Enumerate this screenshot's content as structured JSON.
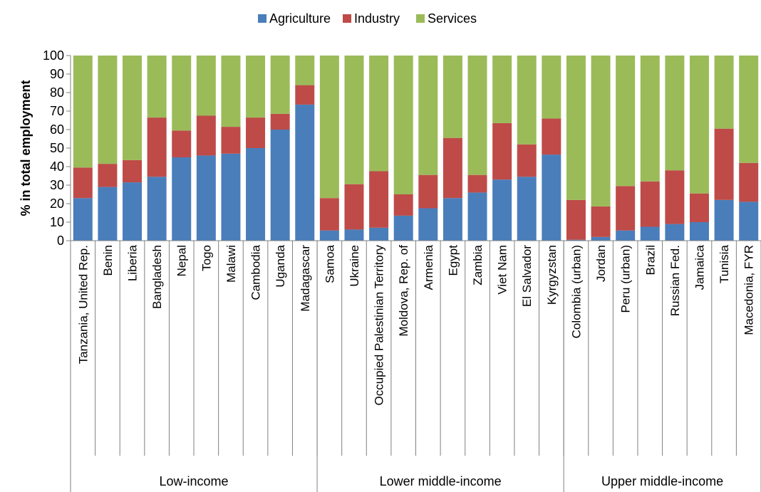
{
  "chart_data": {
    "type": "bar",
    "stacked": true,
    "ylabel": "% in total employment",
    "ylim": [
      0,
      100
    ],
    "yticks": [
      0,
      10,
      20,
      30,
      40,
      50,
      60,
      70,
      80,
      90,
      100
    ],
    "grid": false,
    "legend_position": "top-center",
    "categories": [
      "Tanzania, United Rep.",
      "Benin",
      "Liberia",
      "Bangladesh",
      "Nepal",
      "Togo",
      "Malawi",
      "Cambodia",
      "Uganda",
      "Madagascar",
      "Samoa",
      "Ukraine",
      "Occupied Palestinian Territory",
      "Moldova, Rep. of",
      "Armenia",
      "Egypt",
      "Zambia",
      "Viet Nam",
      "El Salvador",
      "Kyrgyzstan",
      "Colombia (urban)",
      "Jordan",
      "Peru (urban)",
      "Brazil",
      "Russian Fed.",
      "Jamaica",
      "Tunisia",
      "Macedonia, FYR"
    ],
    "groups": [
      {
        "name": "Low-income",
        "count": 10
      },
      {
        "name": "Lower middle-income",
        "count": 10
      },
      {
        "name": "Upper middle-income",
        "count": 8
      }
    ],
    "series": [
      {
        "name": "Agriculture",
        "color": "#4a7ebb",
        "values": [
          23,
          29,
          31.5,
          34.5,
          45,
          46,
          47,
          50,
          60,
          73.5,
          5.5,
          6,
          7,
          13.5,
          17.5,
          23,
          26,
          33,
          34.5,
          46.5,
          0.5,
          2,
          5.5,
          7.5,
          9,
          10,
          22,
          21
        ]
      },
      {
        "name": "Industry",
        "color": "#be4b48",
        "values": [
          16.5,
          12.5,
          12,
          32,
          14.5,
          21.5,
          14.5,
          16.5,
          8.5,
          10.5,
          17.5,
          24.5,
          30.5,
          11.5,
          18,
          32.5,
          9.5,
          30.5,
          17.5,
          19.5,
          21.5,
          16.5,
          24,
          24.5,
          29,
          15.5,
          38.5,
          21
        ]
      },
      {
        "name": "Services",
        "color": "#9bbb59",
        "values": [
          60.5,
          58.5,
          56.5,
          33.5,
          40.5,
          32.5,
          38.5,
          33.5,
          31.5,
          16,
          77,
          69.5,
          62.5,
          75,
          64.5,
          44.5,
          64.5,
          36.5,
          48,
          34,
          78,
          81.5,
          70.5,
          68,
          62,
          74.5,
          39.5,
          58
        ]
      }
    ]
  }
}
